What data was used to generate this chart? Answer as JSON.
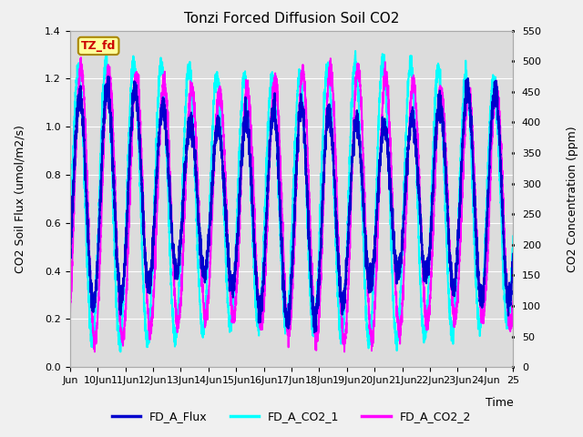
{
  "title": "Tonzi Forced Diffusion Soil CO2",
  "xlabel": "Time",
  "ylabel_left": "CO2 Soil Flux (umol/m2/s)",
  "ylabel_right": "CO2 Concentration (ppm)",
  "ylim_left": [
    0.0,
    1.4
  ],
  "ylim_right": [
    0,
    550
  ],
  "yticks_left": [
    0.0,
    0.2,
    0.4,
    0.6,
    0.8,
    1.0,
    1.2,
    1.4
  ],
  "yticks_right": [
    0,
    50,
    100,
    150,
    200,
    250,
    300,
    350,
    400,
    450,
    500,
    550
  ],
  "xlim": [
    0,
    16
  ],
  "xtick_labels": [
    "Jun",
    "10Jun",
    "11Jun",
    "12Jun",
    "13Jun",
    "14Jun",
    "15Jun",
    "16Jun",
    "17Jun",
    "18Jun",
    "19Jun",
    "20Jun",
    "21Jun",
    "22Jun",
    "23Jun",
    "24Jun",
    "25"
  ],
  "color_flux": "#0000CD",
  "color_co2_1": "#00FFFF",
  "color_co2_2": "#FF00FF",
  "legend_label_flux": "FD_A_Flux",
  "legend_label_co2_1": "FD_A_CO2_1",
  "legend_label_co2_2": "FD_A_CO2_2",
  "annotation_text": "TZ_fd",
  "annotation_color": "#CC0000",
  "annotation_bg": "#FFFF99",
  "fig_bg": "#F0F0F0",
  "plot_bg": "#DCDCDC",
  "grid_color": "#FFFFFF",
  "linewidth_flux": 1.6,
  "linewidth_co2": 1.4
}
